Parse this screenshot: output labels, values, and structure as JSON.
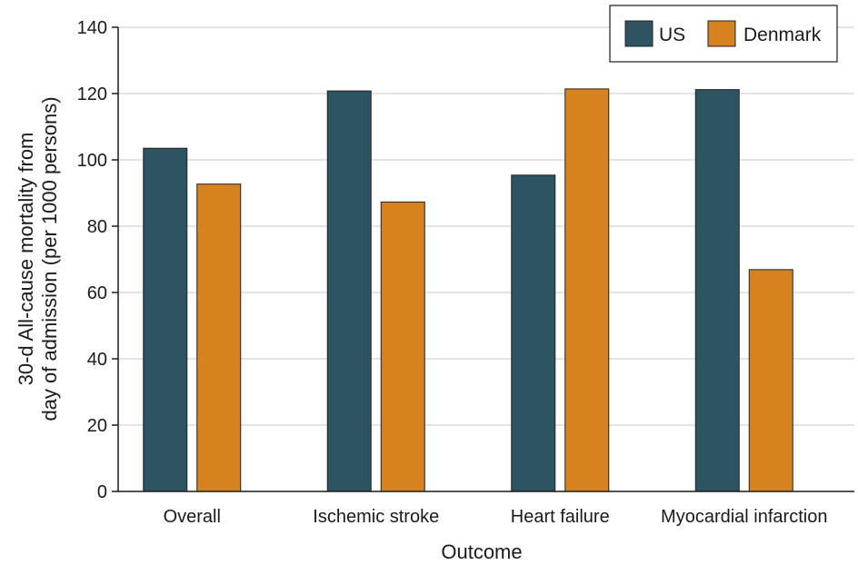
{
  "chart_data": {
    "type": "bar",
    "title": "",
    "xlabel": "Outcome",
    "ylabel_lines": [
      "30-d All-cause mortality from",
      "day of admission (per 1000 persons)"
    ],
    "ylim": [
      0,
      140
    ],
    "yticks": [
      "0",
      "20",
      "40",
      "60",
      "80",
      "100",
      "120",
      "140"
    ],
    "grid": true,
    "legend_position": "top-right",
    "categories": [
      "Overall",
      "Ischemic stroke",
      "Heart failure",
      "Myocardial infarction"
    ],
    "series": [
      {
        "name": "US",
        "color": "#2e5361",
        "values": [
          103.5,
          120.8,
          95.4,
          121.2
        ]
      },
      {
        "name": "Denmark",
        "color": "#d5821f",
        "values": [
          92.7,
          87.3,
          121.4,
          66.9
        ]
      }
    ]
  }
}
